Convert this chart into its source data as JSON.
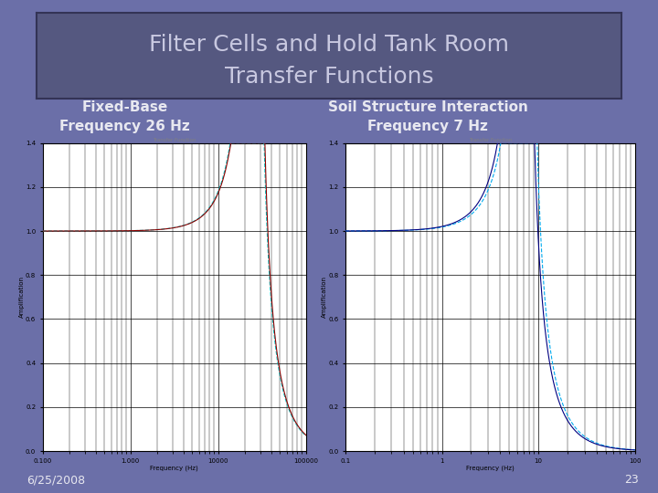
{
  "title_line1": "Filter Cells and Hold Tank Room",
  "title_line2": "Transfer Functions",
  "title_fontsize": 18,
  "label1": "Fixed-Base",
  "label2": "Soil Structure Interaction",
  "freq_label1": "Frequency 26 Hz",
  "freq_label2": "Frequency 7 Hz",
  "date": "6/25/2008",
  "page": "23",
  "bg_color": "#6B6FA8",
  "title_bg": "#555880",
  "plot_bg": "#ffffff",
  "label_color": "#e8e8f0",
  "label_fontsize": 11,
  "freq_fontsize": 11,
  "plot1_xlim": [
    100,
    100000
  ],
  "plot1_ylim": [
    0.0,
    1.4
  ],
  "plot1_yticks": [
    0.0,
    0.2,
    0.4,
    0.6,
    0.8,
    1.0,
    1.2,
    1.4
  ],
  "plot2_xlim": [
    0.1,
    100
  ],
  "plot2_ylim": [
    0.0,
    1.4
  ],
  "plot2_yticks": [
    0.0,
    0.2,
    0.4,
    0.6,
    0.8,
    1.0,
    1.2,
    1.4
  ],
  "curve1_color": "#8B0000",
  "curve1b_color": "#00CCCC",
  "curve2_color": "#000080",
  "curve2b_color": "#00AAEE"
}
